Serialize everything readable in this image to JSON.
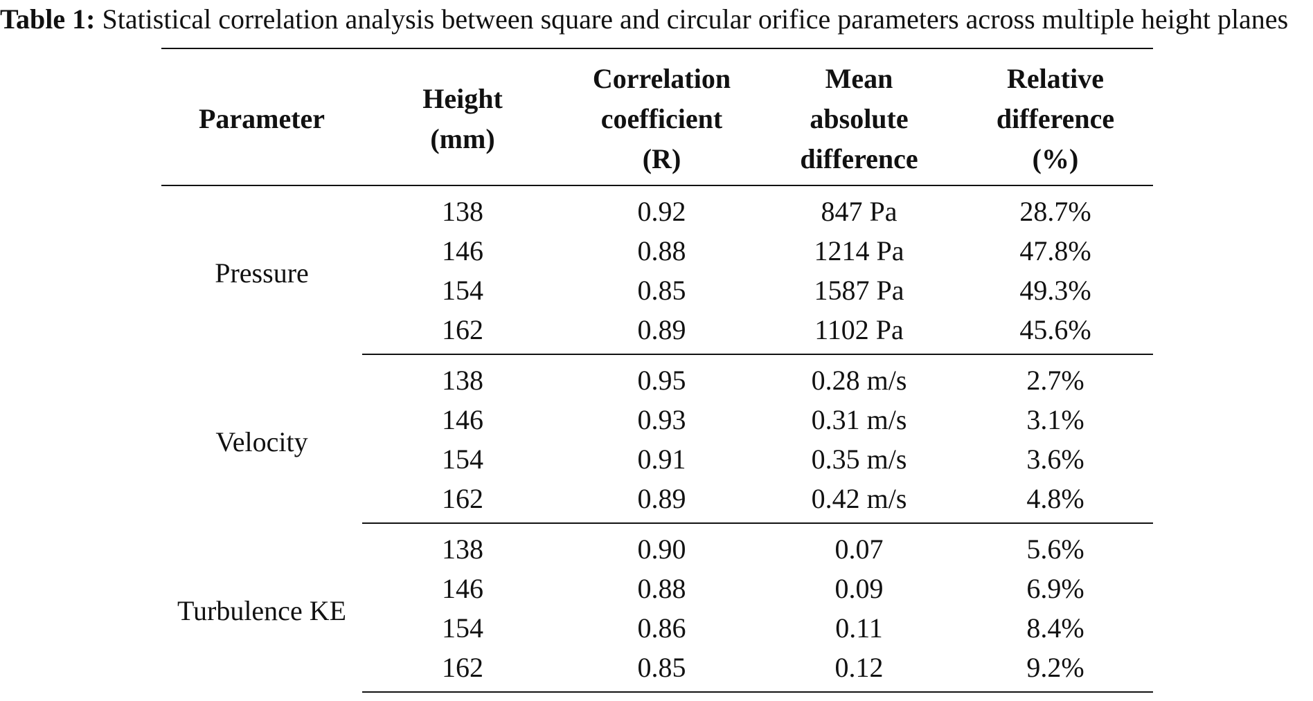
{
  "caption": {
    "label": "Table 1:",
    "text": " Statistical correlation analysis between square and circular orifice parameters across multiple height planes"
  },
  "table": {
    "headers": [
      [
        "Parameter"
      ],
      [
        "Height",
        "(mm)"
      ],
      [
        "Correlation",
        "coefficient",
        "(R)"
      ],
      [
        "Mean",
        "absolute",
        "difference"
      ],
      [
        "Relative",
        "difference",
        "(%)"
      ]
    ],
    "groups": [
      {
        "parameter": "Pressure",
        "rows": [
          {
            "height": "138",
            "r": "0.92",
            "mad": "847 Pa",
            "rel": "28.7%"
          },
          {
            "height": "146",
            "r": "0.88",
            "mad": "1214 Pa",
            "rel": "47.8%"
          },
          {
            "height": "154",
            "r": "0.85",
            "mad": "1587 Pa",
            "rel": "49.3%"
          },
          {
            "height": "162",
            "r": "0.89",
            "mad": "1102 Pa",
            "rel": "45.6%"
          }
        ]
      },
      {
        "parameter": "Velocity",
        "rows": [
          {
            "height": "138",
            "r": "0.95",
            "mad": "0.28 m/s",
            "rel": "2.7%"
          },
          {
            "height": "146",
            "r": "0.93",
            "mad": "0.31 m/s",
            "rel": "3.1%"
          },
          {
            "height": "154",
            "r": "0.91",
            "mad": "0.35 m/s",
            "rel": "3.6%"
          },
          {
            "height": "162",
            "r": "0.89",
            "mad": "0.42 m/s",
            "rel": "4.8%"
          }
        ]
      },
      {
        "parameter": "Turbulence KE",
        "rows": [
          {
            "height": "138",
            "r": "0.90",
            "mad": "0.07",
            "rel": "5.6%"
          },
          {
            "height": "146",
            "r": "0.88",
            "mad": "0.09",
            "rel": "6.9%"
          },
          {
            "height": "154",
            "r": "0.86",
            "mad": "0.11",
            "rel": "8.4%"
          },
          {
            "height": "162",
            "r": "0.85",
            "mad": "0.12",
            "rel": "9.2%"
          }
        ]
      }
    ]
  }
}
